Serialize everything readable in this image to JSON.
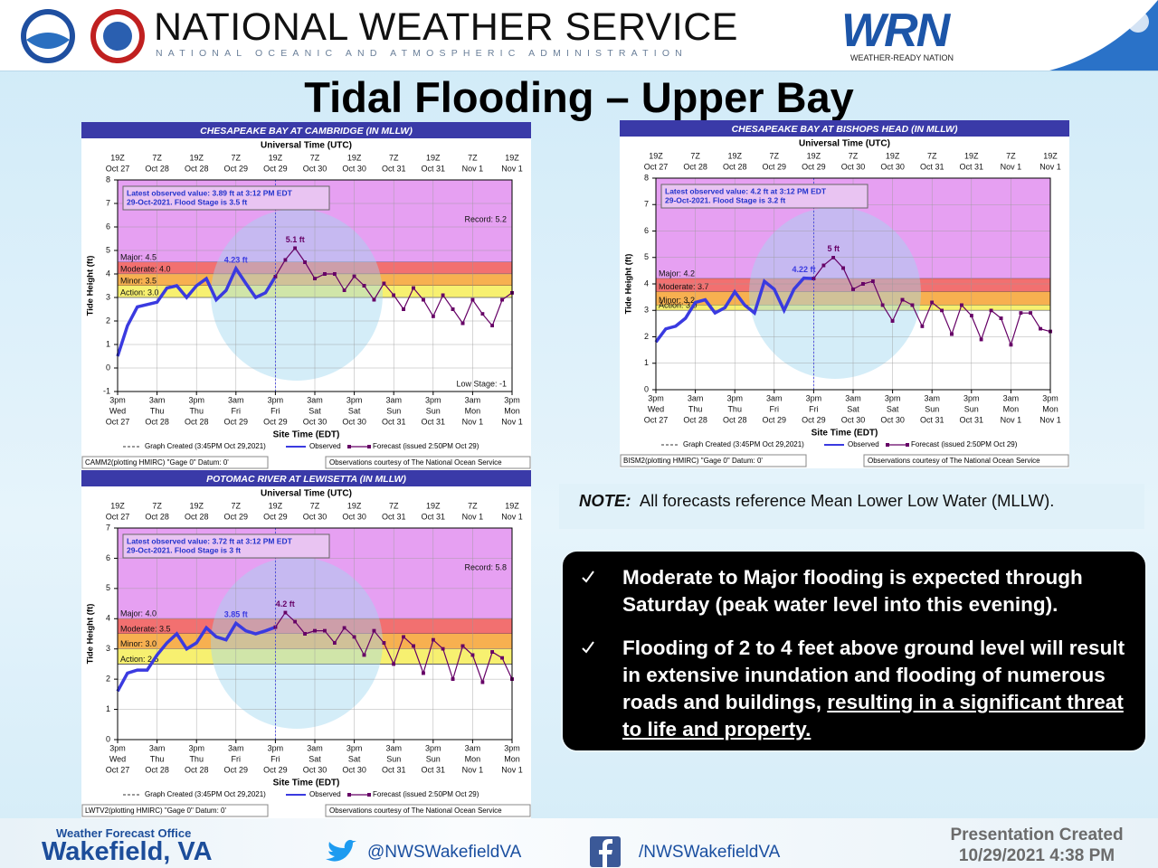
{
  "header": {
    "agency": "NATIONAL WEATHER SERVICE",
    "parent": "NATIONAL OCEANIC AND ATMOSPHERIC ADMINISTRATION",
    "wrn": "WRN",
    "wrn_tagline": "WEATHER-READY NATION"
  },
  "title": "Tidal Flooding – Upper Bay",
  "note": {
    "label": "NOTE:",
    "text": "All forecasts reference Mean Lower Low Water (MLLW)."
  },
  "bullets": [
    {
      "text": "Moderate to Major flooding is expected through Saturday (peak water level into this evening)."
    },
    {
      "text": "Flooding of 2 to 4 feet above ground level will result in extensive inundation and flooding of numerous roads and buildings, ",
      "emphasis": "resulting in a significant threat to life and property."
    }
  ],
  "footer": {
    "office_label": "Weather Forecast Office",
    "office": "Wakefield, VA",
    "twitter": "@NWSWakefieldVA",
    "facebook": "/NWSWakefieldVA",
    "created_label": "Presentation Created",
    "created": "10/29/2021 4:38 PM"
  },
  "chart_data": [
    {
      "type": "line",
      "title": "CHESAPEAKE BAY AT CAMBRIDGE (IN MLLW)",
      "top_axis_label": "Universal Time (UTC)",
      "xlabel": "Site Time (EDT)",
      "ylabel": "Tide Height (ft)",
      "xlim": [
        0,
        120
      ],
      "ylim": [
        -1,
        8
      ],
      "yticks": [
        -1,
        0,
        1,
        2,
        3,
        4,
        5,
        6,
        7,
        8
      ],
      "grid": true,
      "top_xticks": [
        {
          "value": 0,
          "label": [
            "19Z",
            "Oct 27"
          ]
        },
        {
          "value": 12,
          "label": [
            "7Z",
            "Oct 28"
          ]
        },
        {
          "value": 24,
          "label": [
            "19Z",
            "Oct 28"
          ]
        },
        {
          "value": 36,
          "label": [
            "7Z",
            "Oct 29"
          ]
        },
        {
          "value": 48,
          "label": [
            "19Z",
            "Oct 29"
          ]
        },
        {
          "value": 60,
          "label": [
            "7Z",
            "Oct 30"
          ]
        },
        {
          "value": 72,
          "label": [
            "19Z",
            "Oct 30"
          ]
        },
        {
          "value": 84,
          "label": [
            "7Z",
            "Oct 31"
          ]
        },
        {
          "value": 96,
          "label": [
            "19Z",
            "Oct 31"
          ]
        },
        {
          "value": 108,
          "label": [
            "7Z",
            "Nov 1"
          ]
        },
        {
          "value": 120,
          "label": [
            "19Z",
            "Nov 1"
          ]
        }
      ],
      "xticks": [
        {
          "value": 0,
          "label": [
            "3pm",
            "Wed",
            "Oct 27"
          ]
        },
        {
          "value": 12,
          "label": [
            "3am",
            "Thu",
            "Oct 28"
          ]
        },
        {
          "value": 24,
          "label": [
            "3pm",
            "Thu",
            "Oct 28"
          ]
        },
        {
          "value": 36,
          "label": [
            "3am",
            "Fri",
            "Oct 29"
          ]
        },
        {
          "value": 48,
          "label": [
            "3pm",
            "Fri",
            "Oct 29"
          ]
        },
        {
          "value": 60,
          "label": [
            "3am",
            "Sat",
            "Oct 30"
          ]
        },
        {
          "value": 72,
          "label": [
            "3pm",
            "Sat",
            "Oct 30"
          ]
        },
        {
          "value": 84,
          "label": [
            "3am",
            "Sun",
            "Oct 31"
          ]
        },
        {
          "value": 96,
          "label": [
            "3pm",
            "Sun",
            "Oct 31"
          ]
        },
        {
          "value": 108,
          "label": [
            "3am",
            "Mon",
            "Nov 1"
          ]
        },
        {
          "value": 120,
          "label": [
            "3pm",
            "Mon",
            "Nov 1"
          ]
        }
      ],
      "stages": [
        {
          "label": "Major: 4.5",
          "value": 4.5,
          "color": "#e6a0f2"
        },
        {
          "label": "Moderate: 4.0",
          "value": 4.0,
          "color": "#f27070"
        },
        {
          "label": "Minor: 3.5",
          "value": 3.5,
          "color": "#f7b050"
        },
        {
          "label": "Action: 3.0",
          "value": 3.0,
          "color": "#f7f070"
        }
      ],
      "latest": [
        "Latest observed value: 3.89 ft at 3:12 PM EDT",
        "29-Oct-2021.  Flood Stage is 3.5 ft"
      ],
      "forecast_peak_label": "5.1 ft",
      "observed_peak_label": "4.23 ft",
      "record_label": "Record: 5.2",
      "low_label": "Low Stage: -1",
      "legend_created": "Graph Created (3:45PM Oct 29,2021)",
      "series": [
        {
          "name": "Observed",
          "color": "#3a3ae0",
          "x": [
            0,
            3,
            6,
            9,
            12,
            15,
            18,
            21,
            24,
            27,
            30,
            33,
            36,
            39,
            42,
            45,
            48
          ],
          "values": [
            0.5,
            1.8,
            2.6,
            2.7,
            2.8,
            3.4,
            3.5,
            3.0,
            3.5,
            3.8,
            2.9,
            3.3,
            4.23,
            3.6,
            3.0,
            3.2,
            3.89
          ]
        },
        {
          "name": "Forecast (issued 2:50PM Oct 29)",
          "color": "#660066",
          "x": [
            48,
            51,
            54,
            57,
            60,
            63,
            66,
            69,
            72,
            75,
            78,
            81,
            84,
            87,
            90,
            93,
            96,
            99,
            102,
            105,
            108,
            111,
            114,
            117,
            120
          ],
          "values": [
            3.89,
            4.6,
            5.1,
            4.5,
            3.8,
            4.0,
            4.0,
            3.3,
            3.9,
            3.5,
            2.9,
            3.6,
            3.1,
            2.5,
            3.4,
            2.9,
            2.2,
            3.1,
            2.5,
            1.9,
            2.9,
            2.3,
            1.8,
            2.9,
            3.2
          ]
        }
      ],
      "footnote_left": "CAMM2(plotting HMIRC) \"Gage 0\" Datum: 0'",
      "footnote_right": "Observations courtesy of The National Ocean Service"
    },
    {
      "type": "line",
      "title": "CHESAPEAKE BAY AT BISHOPS HEAD (IN MLLW)",
      "top_axis_label": "Universal Time (UTC)",
      "xlabel": "Site Time (EDT)",
      "ylabel": "Tide Height (ft)",
      "xlim": [
        0,
        120
      ],
      "ylim": [
        0,
        8
      ],
      "yticks": [
        0,
        1,
        2,
        3,
        4,
        5,
        6,
        7,
        8
      ],
      "grid": true,
      "top_xticks": [
        {
          "value": 0,
          "label": [
            "19Z",
            "Oct 27"
          ]
        },
        {
          "value": 12,
          "label": [
            "7Z",
            "Oct 28"
          ]
        },
        {
          "value": 24,
          "label": [
            "19Z",
            "Oct 28"
          ]
        },
        {
          "value": 36,
          "label": [
            "7Z",
            "Oct 29"
          ]
        },
        {
          "value": 48,
          "label": [
            "19Z",
            "Oct 29"
          ]
        },
        {
          "value": 60,
          "label": [
            "7Z",
            "Oct 30"
          ]
        },
        {
          "value": 72,
          "label": [
            "19Z",
            "Oct 30"
          ]
        },
        {
          "value": 84,
          "label": [
            "7Z",
            "Oct 31"
          ]
        },
        {
          "value": 96,
          "label": [
            "19Z",
            "Oct 31"
          ]
        },
        {
          "value": 108,
          "label": [
            "7Z",
            "Nov 1"
          ]
        },
        {
          "value": 120,
          "label": [
            "19Z",
            "Nov 1"
          ]
        }
      ],
      "xticks": [
        {
          "value": 0,
          "label": [
            "3pm",
            "Wed",
            "Oct 27"
          ]
        },
        {
          "value": 12,
          "label": [
            "3am",
            "Thu",
            "Oct 28"
          ]
        },
        {
          "value": 24,
          "label": [
            "3pm",
            "Thu",
            "Oct 28"
          ]
        },
        {
          "value": 36,
          "label": [
            "3am",
            "Fri",
            "Oct 29"
          ]
        },
        {
          "value": 48,
          "label": [
            "3pm",
            "Fri",
            "Oct 29"
          ]
        },
        {
          "value": 60,
          "label": [
            "3am",
            "Sat",
            "Oct 30"
          ]
        },
        {
          "value": 72,
          "label": [
            "3pm",
            "Sat",
            "Oct 30"
          ]
        },
        {
          "value": 84,
          "label": [
            "3am",
            "Sun",
            "Oct 31"
          ]
        },
        {
          "value": 96,
          "label": [
            "3pm",
            "Sun",
            "Oct 31"
          ]
        },
        {
          "value": 108,
          "label": [
            "3am",
            "Mon",
            "Nov 1"
          ]
        },
        {
          "value": 120,
          "label": [
            "3pm",
            "Mon",
            "Nov 1"
          ]
        }
      ],
      "stages": [
        {
          "label": "Major: 4.2",
          "value": 4.2,
          "color": "#e6a0f2"
        },
        {
          "label": "Moderate: 3.7",
          "value": 3.7,
          "color": "#f27070"
        },
        {
          "label": "Minor: 3.2",
          "value": 3.2,
          "color": "#f7b050"
        },
        {
          "label": "Action: 3.0",
          "value": 3.0,
          "color": "#f7f070"
        }
      ],
      "latest": [
        "Latest observed value: 4.2 ft at 3:12 PM EDT",
        "29-Oct-2021.  Flood Stage is 3.2 ft"
      ],
      "forecast_peak_label": "5 ft",
      "observed_peak_label": "4.22 ft",
      "legend_created": "Graph Created (3:45PM Oct 29,2021)",
      "series": [
        {
          "name": "Observed",
          "color": "#3a3ae0",
          "x": [
            0,
            3,
            6,
            9,
            12,
            15,
            18,
            21,
            24,
            27,
            30,
            33,
            36,
            39,
            42,
            45,
            48
          ],
          "values": [
            1.8,
            2.3,
            2.4,
            2.7,
            3.3,
            3.4,
            2.9,
            3.1,
            3.7,
            3.2,
            2.9,
            4.1,
            3.8,
            3.0,
            3.8,
            4.22,
            4.2
          ]
        },
        {
          "name": "Forecast (issued 2:50PM Oct 29)",
          "color": "#660066",
          "x": [
            48,
            51,
            54,
            57,
            60,
            63,
            66,
            69,
            72,
            75,
            78,
            81,
            84,
            87,
            90,
            93,
            96,
            99,
            102,
            105,
            108,
            111,
            114,
            117,
            120
          ],
          "values": [
            4.2,
            4.7,
            5.0,
            4.6,
            3.8,
            4.0,
            4.1,
            3.2,
            2.6,
            3.4,
            3.2,
            2.4,
            3.3,
            3.0,
            2.1,
            3.2,
            2.8,
            1.9,
            3.0,
            2.7,
            1.7,
            2.9,
            2.9,
            2.3,
            2.2
          ]
        }
      ],
      "footnote_left": "BISM2(plotting HMIRC) \"Gage 0\" Datum: 0'",
      "footnote_right": "Observations courtesy of The National Ocean Service"
    },
    {
      "type": "line",
      "title": "POTOMAC RIVER AT LEWISETTA (IN MLLW)",
      "top_axis_label": "Universal Time (UTC)",
      "xlabel": "Site Time (EDT)",
      "ylabel": "Tide Height (ft)",
      "xlim": [
        0,
        120
      ],
      "ylim": [
        0,
        7
      ],
      "yticks": [
        0,
        1,
        2,
        3,
        4,
        5,
        6,
        7
      ],
      "grid": true,
      "top_xticks": [
        {
          "value": 0,
          "label": [
            "19Z",
            "Oct 27"
          ]
        },
        {
          "value": 12,
          "label": [
            "7Z",
            "Oct 28"
          ]
        },
        {
          "value": 24,
          "label": [
            "19Z",
            "Oct 28"
          ]
        },
        {
          "value": 36,
          "label": [
            "7Z",
            "Oct 29"
          ]
        },
        {
          "value": 48,
          "label": [
            "19Z",
            "Oct 29"
          ]
        },
        {
          "value": 60,
          "label": [
            "7Z",
            "Oct 30"
          ]
        },
        {
          "value": 72,
          "label": [
            "19Z",
            "Oct 30"
          ]
        },
        {
          "value": 84,
          "label": [
            "7Z",
            "Oct 31"
          ]
        },
        {
          "value": 96,
          "label": [
            "19Z",
            "Oct 31"
          ]
        },
        {
          "value": 108,
          "label": [
            "7Z",
            "Nov 1"
          ]
        },
        {
          "value": 120,
          "label": [
            "19Z",
            "Nov 1"
          ]
        }
      ],
      "xticks": [
        {
          "value": 0,
          "label": [
            "3pm",
            "Wed",
            "Oct 27"
          ]
        },
        {
          "value": 12,
          "label": [
            "3am",
            "Thu",
            "Oct 28"
          ]
        },
        {
          "value": 24,
          "label": [
            "3pm",
            "Thu",
            "Oct 28"
          ]
        },
        {
          "value": 36,
          "label": [
            "3am",
            "Fri",
            "Oct 29"
          ]
        },
        {
          "value": 48,
          "label": [
            "3pm",
            "Fri",
            "Oct 29"
          ]
        },
        {
          "value": 60,
          "label": [
            "3am",
            "Sat",
            "Oct 30"
          ]
        },
        {
          "value": 72,
          "label": [
            "3pm",
            "Sat",
            "Oct 30"
          ]
        },
        {
          "value": 84,
          "label": [
            "3am",
            "Sun",
            "Oct 31"
          ]
        },
        {
          "value": 96,
          "label": [
            "3pm",
            "Sun",
            "Oct 31"
          ]
        },
        {
          "value": 108,
          "label": [
            "3am",
            "Mon",
            "Nov 1"
          ]
        },
        {
          "value": 120,
          "label": [
            "3pm",
            "Mon",
            "Nov 1"
          ]
        }
      ],
      "stages": [
        {
          "label": "Major: 4.0",
          "value": 4.0,
          "color": "#e6a0f2"
        },
        {
          "label": "Moderate: 3.5",
          "value": 3.5,
          "color": "#f27070"
        },
        {
          "label": "Minor: 3.0",
          "value": 3.0,
          "color": "#f7b050"
        },
        {
          "label": "Action: 2.5",
          "value": 2.5,
          "color": "#f7f070"
        }
      ],
      "latest": [
        "Latest observed value: 3.72 ft at 3:12 PM EDT",
        "29-Oct-2021.  Flood Stage is 3 ft"
      ],
      "forecast_peak_label": "4.2 ft",
      "observed_peak_label": "3.85 ft",
      "record_label": "Record: 5.8",
      "legend_created": "Graph Created (3:45PM Oct 29,2021)",
      "series": [
        {
          "name": "Observed",
          "color": "#3a3ae0",
          "x": [
            0,
            3,
            6,
            9,
            12,
            15,
            18,
            21,
            24,
            27,
            30,
            33,
            36,
            39,
            42,
            45,
            48
          ],
          "values": [
            1.6,
            2.2,
            2.3,
            2.3,
            2.8,
            3.2,
            3.5,
            3.0,
            3.2,
            3.7,
            3.4,
            3.3,
            3.85,
            3.6,
            3.5,
            3.6,
            3.72
          ]
        },
        {
          "name": "Forecast (issued 2:50PM Oct 29)",
          "color": "#660066",
          "x": [
            48,
            51,
            54,
            57,
            60,
            63,
            66,
            69,
            72,
            75,
            78,
            81,
            84,
            87,
            90,
            93,
            96,
            99,
            102,
            105,
            108,
            111,
            114,
            117,
            120
          ],
          "values": [
            3.72,
            4.2,
            3.9,
            3.5,
            3.6,
            3.6,
            3.2,
            3.7,
            3.4,
            2.8,
            3.6,
            3.2,
            2.5,
            3.4,
            3.1,
            2.2,
            3.3,
            3.0,
            2.0,
            3.1,
            2.8,
            1.9,
            2.9,
            2.7,
            2.0
          ]
        }
      ],
      "footnote_left": "LWTV2(plotting HMIRC) \"Gage 0\" Datum: 0'",
      "footnote_right": "Observations courtesy of The National Ocean Service"
    }
  ]
}
